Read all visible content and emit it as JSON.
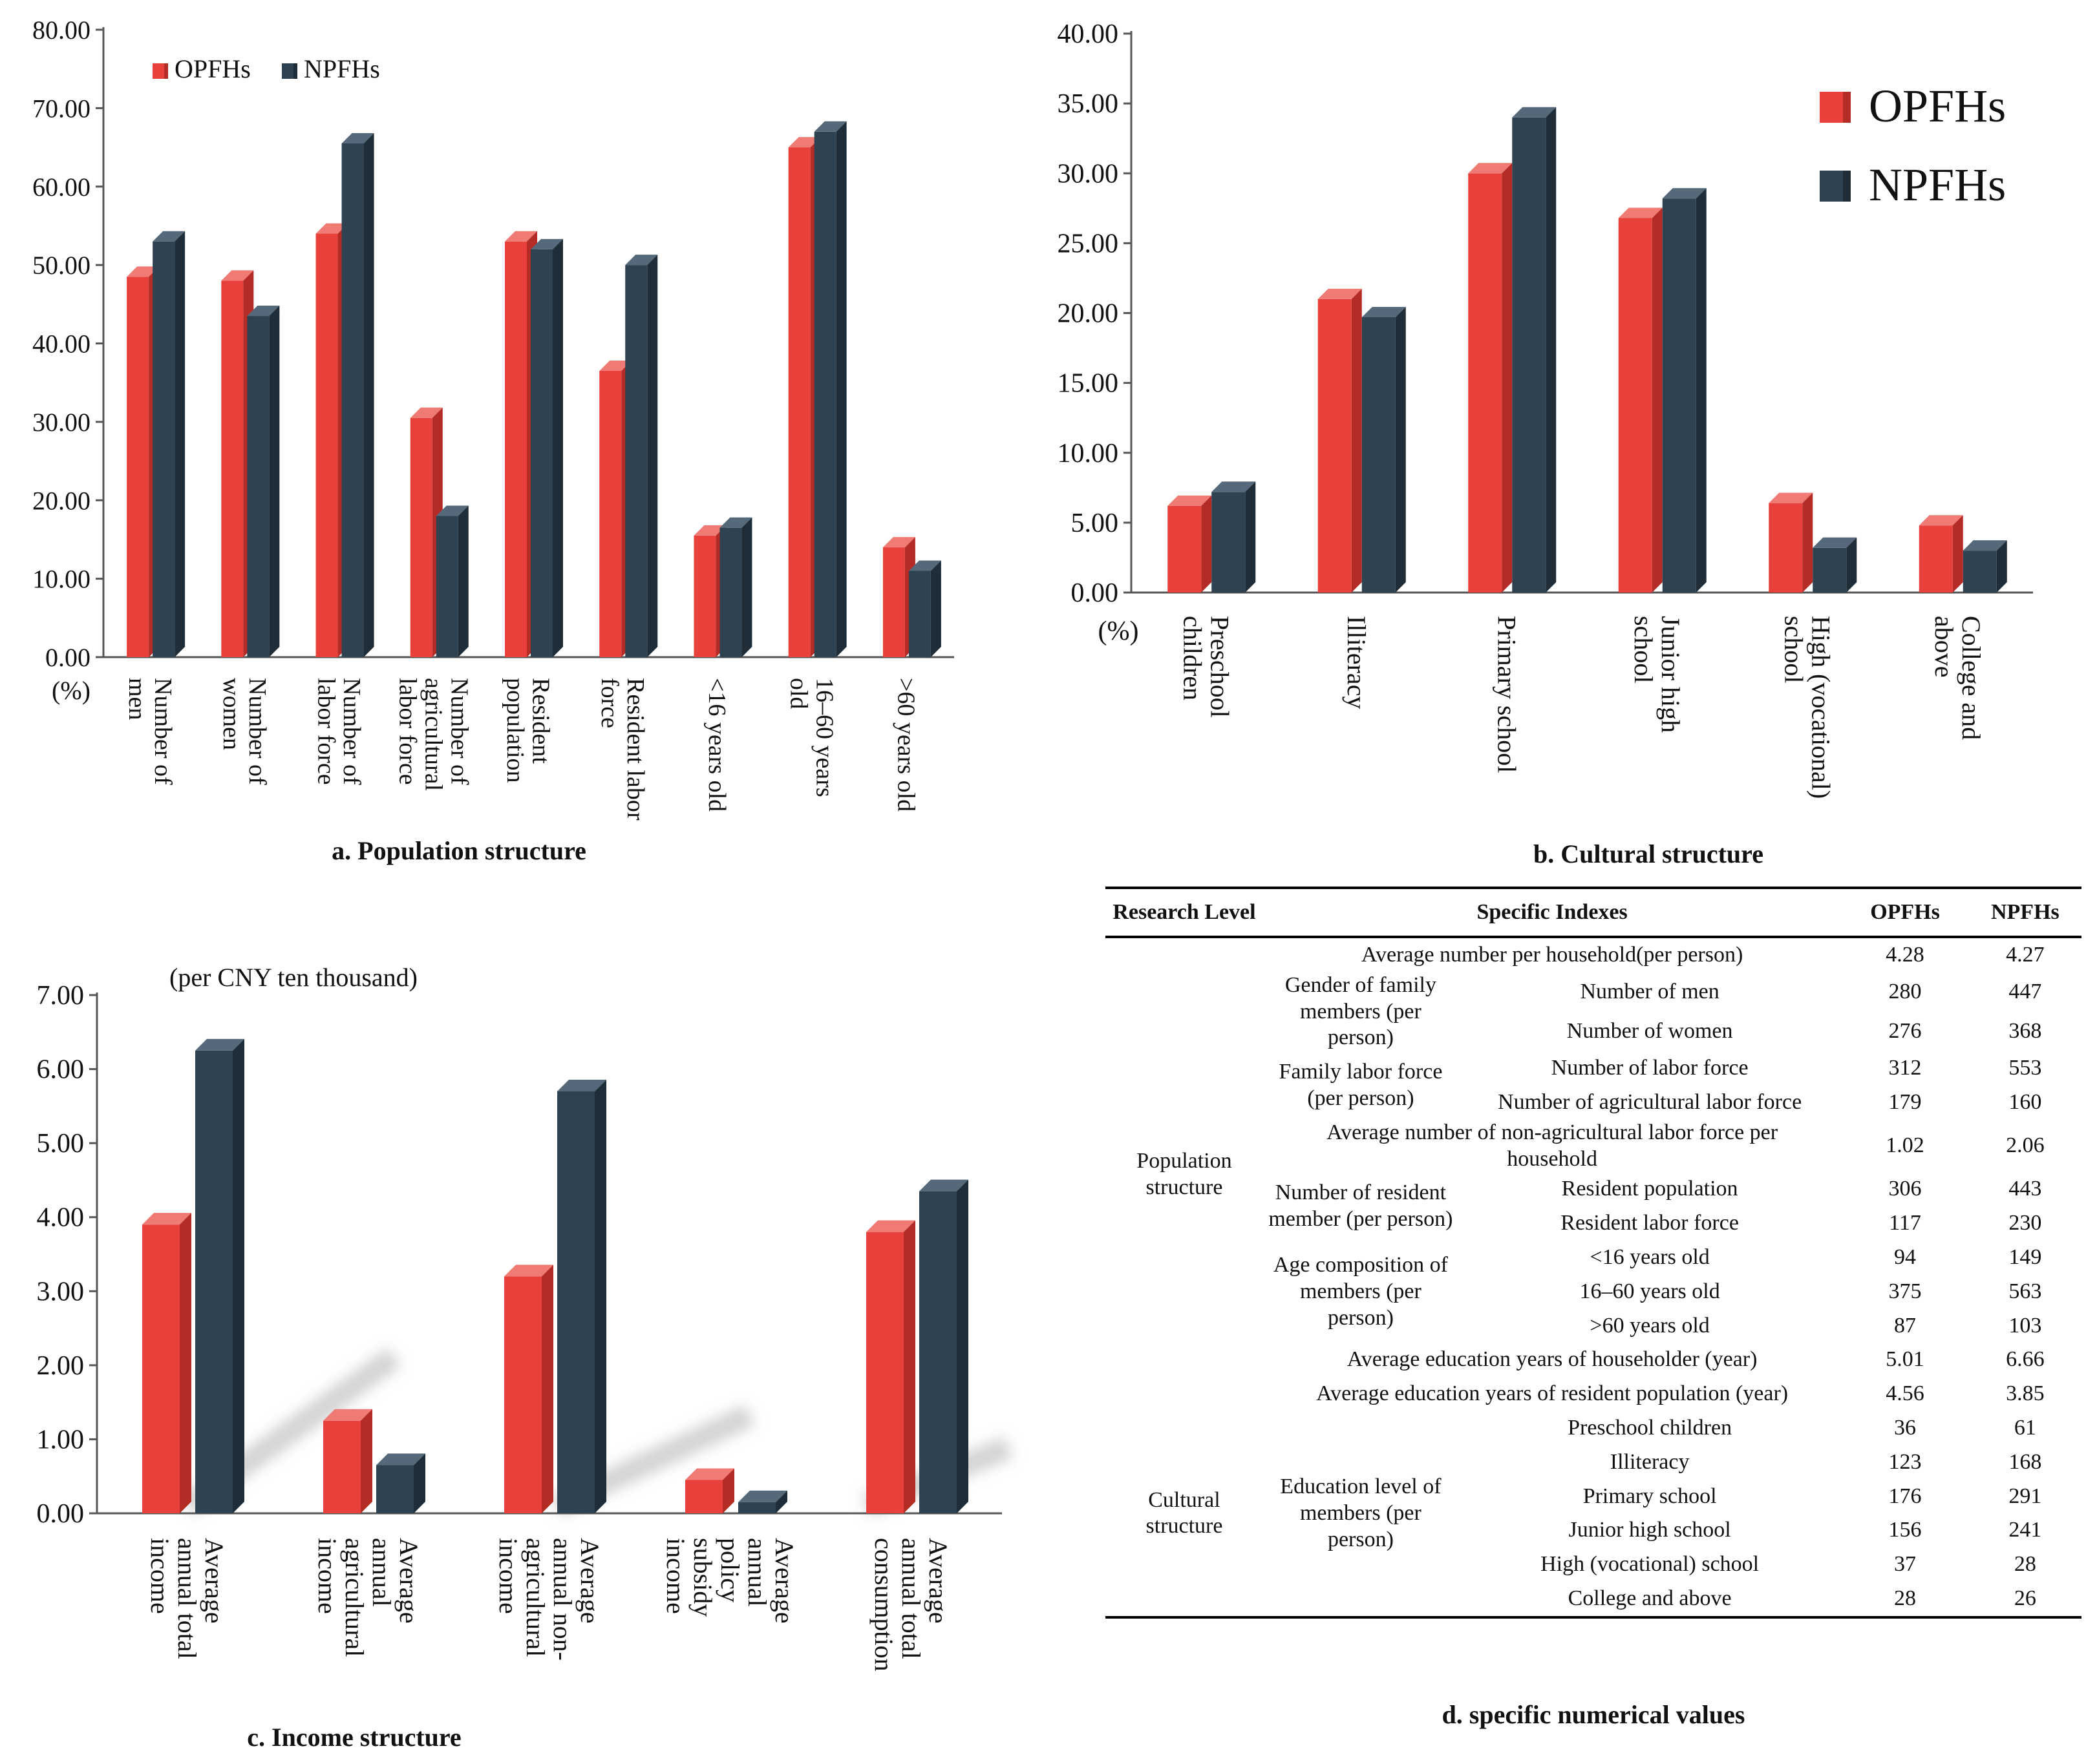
{
  "colors": {
    "opfh": "#e8403a",
    "opfh_top": "#f07a74",
    "opfh_side": "#b52b26",
    "npfh": "#2f4252",
    "npfh_top": "#56697a",
    "npfh_side": "#1f2d39"
  },
  "chart_data": [
    {
      "type": "bar",
      "title": "a. Population structure",
      "ylabel": "(%)",
      "ylim": [
        0,
        80
      ],
      "yticks": [
        "0.00",
        "10.00",
        "20.00",
        "30.00",
        "40.00",
        "50.00",
        "60.00",
        "70.00",
        "80.00"
      ],
      "legend": {
        "position": "top-left",
        "labels": [
          "OPFHs",
          "NPFHs"
        ]
      },
      "categories": [
        [
          "Number of",
          "men"
        ],
        [
          "Number of",
          "women"
        ],
        [
          "Number of",
          "labor force"
        ],
        [
          "Number of",
          "agricultural",
          "labor force"
        ],
        [
          "Resident",
          "population"
        ],
        [
          "Resident labor",
          "force"
        ],
        [
          "<16 years old"
        ],
        [
          "16–60 years",
          "old"
        ],
        [
          ">60 years old"
        ]
      ],
      "series": [
        {
          "name": "OPFHs",
          "values": [
            48.5,
            48,
            54,
            30.5,
            53,
            36.5,
            15.5,
            65,
            14
          ]
        },
        {
          "name": "NPFHs",
          "values": [
            53,
            43.5,
            65.5,
            18,
            52,
            50,
            16.5,
            67,
            11
          ]
        }
      ]
    },
    {
      "type": "bar",
      "title": "b. Cultural structure",
      "ylabel": "(%)",
      "ylim": [
        0,
        40
      ],
      "yticks": [
        "0.00",
        "5.00",
        "10.00",
        "15.00",
        "20.00",
        "25.00",
        "30.00",
        "35.00",
        "40.00"
      ],
      "legend": {
        "position": "top-right",
        "labels": [
          "OPFHs",
          "NPFHs"
        ]
      },
      "categories": [
        [
          "Preschool",
          "children"
        ],
        [
          "Illiteracy"
        ],
        [
          "Primary school"
        ],
        [
          "Junior high",
          "school"
        ],
        [
          "High (vocational)",
          "school"
        ],
        [
          "College and",
          "above"
        ]
      ],
      "series": [
        {
          "name": "OPFHs",
          "values": [
            6.2,
            21,
            30,
            26.8,
            6.4,
            4.8
          ]
        },
        {
          "name": "NPFHs",
          "values": [
            7.2,
            19.7,
            34,
            28.2,
            3.2,
            3
          ]
        }
      ]
    },
    {
      "type": "bar",
      "title": "c. Income structure",
      "ylabel": "(per CNY ten thousand)",
      "ylim": [
        0,
        7
      ],
      "yticks": [
        "0.00",
        "1.00",
        "2.00",
        "3.00",
        "4.00",
        "5.00",
        "6.00",
        "7.00"
      ],
      "categories": [
        [
          "Average",
          "annual total",
          "income"
        ],
        [
          "Average",
          "annual",
          "agricultural",
          "income"
        ],
        [
          "Average",
          "annual non-",
          "agricultural",
          "income"
        ],
        [
          "Average",
          "annual",
          "policy",
          "subsidy",
          "income"
        ],
        [
          "Average",
          "annual total",
          "consumption"
        ]
      ],
      "series": [
        {
          "name": "OPFHs",
          "values": [
            3.9,
            1.25,
            3.2,
            0.45,
            3.8
          ]
        },
        {
          "name": "NPFHs",
          "values": [
            6.25,
            0.65,
            5.7,
            0.15,
            4.35
          ]
        }
      ]
    }
  ],
  "table": {
    "title": "d. specific numerical values",
    "headers": [
      "Research Level",
      "Specific Indexes",
      "OPFHs",
      "NPFHs"
    ],
    "groups": {
      "population": "Population structure",
      "cultural": "Cultural structure",
      "gender": "Gender of family members (per person)",
      "labor": "Family labor force (per person)",
      "resident": "Number of resident member (per person)",
      "age": "Age composition of members (per person)",
      "education": "Education level of members (per person)"
    },
    "rows": [
      {
        "index": "Average number per household(per person)",
        "opfh": "4.28",
        "npfh": "4.27"
      },
      {
        "index": "Number of men",
        "opfh": "280",
        "npfh": "447"
      },
      {
        "index": "Number of women",
        "opfh": "276",
        "npfh": "368"
      },
      {
        "index": "Number of labor force",
        "opfh": "312",
        "npfh": "553"
      },
      {
        "index": "Number of agricultural labor force",
        "opfh": "179",
        "npfh": "160"
      },
      {
        "index": "Average number of non-agricultural labor force per household",
        "opfh": "1.02",
        "npfh": "2.06"
      },
      {
        "index": "Resident population",
        "opfh": "306",
        "npfh": "443"
      },
      {
        "index": "Resident labor force",
        "opfh": "117",
        "npfh": "230"
      },
      {
        "index": "<16 years old",
        "opfh": "94",
        "npfh": "149"
      },
      {
        "index": "16–60 years old",
        "opfh": "375",
        "npfh": "563"
      },
      {
        "index": ">60 years old",
        "opfh": "87",
        "npfh": "103"
      },
      {
        "index": "Average education years of householder (year)",
        "opfh": "5.01",
        "npfh": "6.66"
      },
      {
        "index": "Average education years of resident population (year)",
        "opfh": "4.56",
        "npfh": "3.85"
      },
      {
        "index": "Preschool children",
        "opfh": "36",
        "npfh": "61"
      },
      {
        "index": "Illiteracy",
        "opfh": "123",
        "npfh": "168"
      },
      {
        "index": "Primary school",
        "opfh": "176",
        "npfh": "291"
      },
      {
        "index": "Junior high school",
        "opfh": "156",
        "npfh": "241"
      },
      {
        "index": "High (vocational) school",
        "opfh": "37",
        "npfh": "28"
      },
      {
        "index": "College and above",
        "opfh": "28",
        "npfh": "26"
      }
    ]
  }
}
